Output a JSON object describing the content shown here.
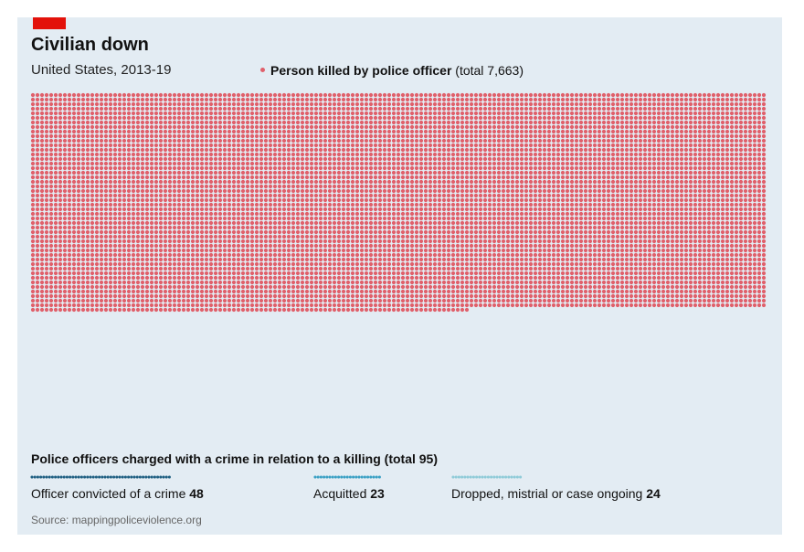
{
  "title": "Civilian down",
  "subtitle": "United States, 2013-19",
  "legend": {
    "label": "Person killed by police officer",
    "total_text": "(total 7,663)",
    "color": "#e0606b"
  },
  "charged": {
    "title": "Police officers charged with a crime in relation to a killing (total 95)"
  },
  "outcomes": [
    {
      "label": "Officer convicted of a crime",
      "value_text": "48",
      "color": "#1f5f82"
    },
    {
      "label": "Acquitted",
      "value_text": "23",
      "color": "#3aa0c4"
    },
    {
      "label": "Dropped, mistrial or case ongoing",
      "value_text": "24",
      "color": "#8fcbd8"
    }
  ],
  "source": "Source: mappingpoliceviolence.org",
  "accent": "#e3120b",
  "background": "#e3ecf3",
  "chart_data": {
    "type": "waffle",
    "title": "Civilian down",
    "subtitle": "United States, 2013-19",
    "units": [
      {
        "name": "Person killed by police officer",
        "value": 7663,
        "color": "#e0606b"
      }
    ],
    "subset": {
      "title": "Police officers charged with a crime in relation to a killing (total 95)",
      "total": 95,
      "categories": [
        "Officer convicted of a crime",
        "Acquitted",
        "Dropped, mistrial or case ongoing"
      ],
      "values": [
        48,
        23,
        24
      ],
      "colors": [
        "#1f5f82",
        "#3aa0c4",
        "#8fcbd8"
      ]
    }
  }
}
